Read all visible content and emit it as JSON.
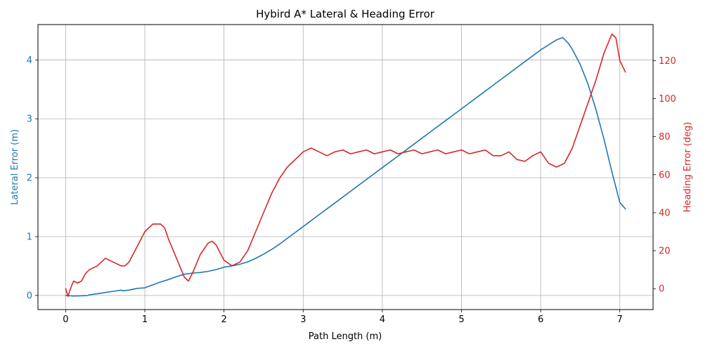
{
  "chart_data": {
    "type": "line",
    "title": "Hybird A* Lateral & Heading Error",
    "xlabel": "Path Length (m)",
    "xlim": [
      -0.35,
      7.42
    ],
    "xticks": [
      0,
      1,
      2,
      3,
      4,
      5,
      6,
      7
    ],
    "grid": true,
    "colors": {
      "left": "#1f77b4",
      "right": "#d62728"
    },
    "left_axis": {
      "label": "Lateral Error (m)",
      "ylim": [
        -0.24,
        4.6
      ],
      "ticks": [
        0,
        1,
        2,
        3,
        4
      ]
    },
    "right_axis": {
      "label": "Heading Error (deg)",
      "ylim": [
        -11,
        139
      ],
      "ticks": [
        0,
        20,
        40,
        60,
        80,
        100,
        120
      ]
    },
    "series": [
      {
        "axis": "left",
        "color": "#1f77b4",
        "x": [
          0,
          0.1,
          0.2,
          0.28,
          0.3,
          0.4,
          0.5,
          0.6,
          0.7,
          0.72,
          0.8,
          0.9,
          1.0,
          1.1,
          1.2,
          1.3,
          1.4,
          1.5,
          1.6,
          1.7,
          1.8,
          1.9,
          2.0,
          2.1,
          2.2,
          2.3,
          2.4,
          2.5,
          2.6,
          2.7,
          2.8,
          2.9,
          3.0,
          3.2,
          3.4,
          3.6,
          3.8,
          4.0,
          4.2,
          4.4,
          4.6,
          4.8,
          5.0,
          5.2,
          5.4,
          5.6,
          5.8,
          6.0,
          6.2,
          6.28,
          6.35,
          6.4,
          6.5,
          6.6,
          6.7,
          6.8,
          6.9,
          7.0,
          7.07
        ],
        "y": [
          0,
          -0.01,
          -0.005,
          0,
          0.01,
          0.03,
          0.05,
          0.07,
          0.09,
          0.08,
          0.09,
          0.12,
          0.13,
          0.18,
          0.23,
          0.27,
          0.32,
          0.36,
          0.38,
          0.39,
          0.41,
          0.44,
          0.48,
          0.5,
          0.53,
          0.57,
          0.63,
          0.7,
          0.78,
          0.87,
          0.97,
          1.07,
          1.17,
          1.37,
          1.57,
          1.77,
          1.97,
          2.17,
          2.37,
          2.57,
          2.77,
          2.97,
          3.17,
          3.37,
          3.57,
          3.77,
          3.97,
          4.17,
          4.34,
          4.38,
          4.28,
          4.18,
          3.92,
          3.58,
          3.15,
          2.65,
          2.1,
          1.58,
          1.47
        ]
      },
      {
        "axis": "right",
        "color": "#d62728",
        "x": [
          0,
          0.03,
          0.06,
          0.1,
          0.15,
          0.2,
          0.25,
          0.3,
          0.4,
          0.5,
          0.6,
          0.7,
          0.75,
          0.8,
          0.9,
          1.0,
          1.1,
          1.2,
          1.25,
          1.3,
          1.4,
          1.5,
          1.55,
          1.6,
          1.7,
          1.8,
          1.85,
          1.9,
          2.0,
          2.1,
          2.2,
          2.3,
          2.4,
          2.5,
          2.6,
          2.7,
          2.8,
          2.9,
          3.0,
          3.1,
          3.2,
          3.3,
          3.4,
          3.5,
          3.6,
          3.7,
          3.8,
          3.9,
          4.0,
          4.1,
          4.2,
          4.3,
          4.4,
          4.5,
          4.6,
          4.7,
          4.8,
          4.9,
          5.0,
          5.1,
          5.2,
          5.3,
          5.4,
          5.5,
          5.6,
          5.7,
          5.8,
          5.9,
          6.0,
          6.1,
          6.2,
          6.3,
          6.4,
          6.5,
          6.6,
          6.7,
          6.8,
          6.9,
          6.95,
          7.0,
          7.07
        ],
        "y": [
          0,
          -4,
          0,
          4,
          3,
          4,
          8,
          10,
          12,
          16,
          14,
          12,
          12,
          14,
          22,
          30,
          34,
          34,
          32,
          26,
          16,
          6,
          4,
          8,
          18,
          24,
          25,
          23,
          15,
          12,
          14,
          20,
          30,
          40,
          50,
          58,
          64,
          68,
          72,
          74,
          72,
          70,
          72,
          73,
          71,
          72,
          73,
          71,
          72,
          73,
          71,
          72,
          73,
          71,
          72,
          73,
          71,
          72,
          73,
          71,
          72,
          73,
          70,
          70,
          72,
          68,
          67,
          70,
          72,
          66,
          64,
          66,
          74,
          86,
          98,
          110,
          124,
          134,
          132,
          120,
          114
        ]
      }
    ]
  }
}
